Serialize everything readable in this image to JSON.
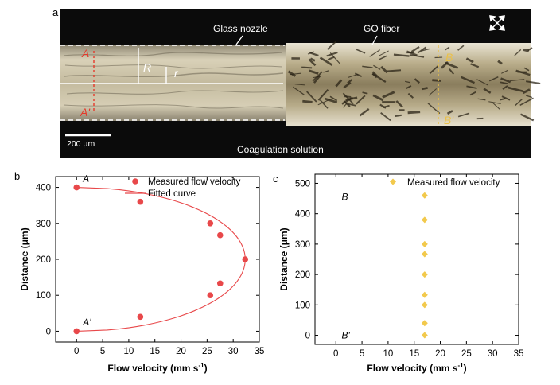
{
  "panel_a": {
    "label": "a",
    "annotations": {
      "glass_nozzle": "Glass nozzle",
      "go_fiber": "GO fiber",
      "coagulation": "Coagulation solution",
      "scale_bar": "200 μm",
      "R": "R",
      "r": "r",
      "A": "A",
      "A_prime": "A'",
      "B": "B",
      "B_prime": "B'"
    },
    "colors": {
      "background": "#0b0b0b",
      "nozzle": "#cfc6ad",
      "fiber": "#c8bd9c",
      "fiber_texture": "#2b2417",
      "A_marker": "#e5392b",
      "B_marker": "#e9c04a"
    }
  },
  "chart_data": [
    {
      "id": "b",
      "panel_label": "b",
      "type": "scatter",
      "xlabel": "Flow velocity (mm s",
      "xlabel_sup": "-1",
      "xlabel_close": ")",
      "ylabel": "Distance (μm)",
      "xlim": [
        -4,
        35
      ],
      "ylim": [
        -30,
        430
      ],
      "xticks": [
        0,
        5,
        10,
        15,
        20,
        25,
        30,
        35
      ],
      "yticks": [
        0,
        100,
        200,
        300,
        400
      ],
      "legend_position": "top-right",
      "series": [
        {
          "name": "Measured flow velocity",
          "kind": "points",
          "color": "#e8484a",
          "x": [
            0,
            12.2,
            25.6,
            27.5,
            32.3,
            27.5,
            25.6,
            12.2,
            0
          ],
          "y": [
            400,
            360,
            300,
            267,
            200,
            133,
            100,
            40,
            0
          ]
        },
        {
          "name": "Fitted curve",
          "kind": "line",
          "color": "#e8484a",
          "vertex": [
            32.3,
            200
          ],
          "radius": 200
        }
      ],
      "annotations": [
        {
          "text": "A",
          "x": 0.6,
          "y": 425
        },
        {
          "text": "A'",
          "x": 0.6,
          "y": 25
        }
      ]
    },
    {
      "id": "c",
      "panel_label": "c",
      "type": "scatter",
      "xlabel": "Flow velocity (mm s",
      "xlabel_sup": "-1",
      "xlabel_close": ")",
      "ylabel": "Distance (μm)",
      "xlim": [
        -4,
        35
      ],
      "ylim": [
        -30,
        530
      ],
      "xticks": [
        0,
        5,
        10,
        15,
        20,
        25,
        30,
        35
      ],
      "yticks": [
        0,
        100,
        200,
        300,
        400,
        500
      ],
      "legend_position": "top-right",
      "series": [
        {
          "name": "Measured flow velocity",
          "kind": "points",
          "color": "#f2c94c",
          "x": [
            17,
            17,
            17,
            17,
            17,
            17,
            17,
            17,
            17
          ],
          "y": [
            460,
            380,
            300,
            267,
            200,
            133,
            100,
            40,
            0
          ]
        }
      ],
      "annotations": [
        {
          "text": "B",
          "x": 0.5,
          "y": 455
        },
        {
          "text": "B'",
          "x": 0.5,
          "y": 0
        }
      ]
    }
  ]
}
